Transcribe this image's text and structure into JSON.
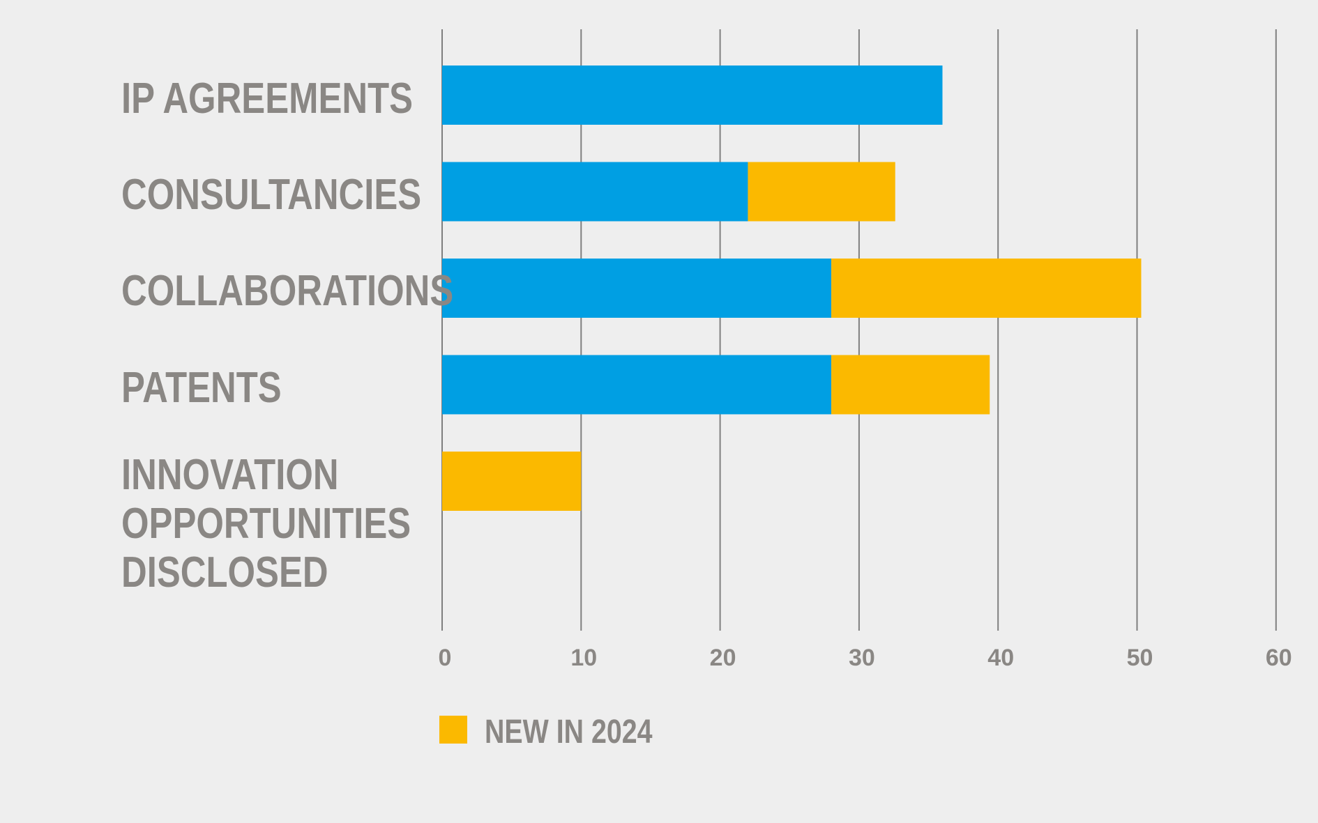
{
  "chart_data": {
    "type": "bar",
    "orientation": "horizontal",
    "stacked": true,
    "categories": [
      [
        "IP AGREEMENTS"
      ],
      [
        "CONSULTANCIES"
      ],
      [
        "COLLABORATIONS"
      ],
      [
        "PATENTS"
      ],
      [
        "INNOVATION",
        "OPPORTUNITIES",
        "DISCLOSED"
      ]
    ],
    "series": [
      {
        "values": [
          36,
          22,
          28,
          28,
          0
        ],
        "color": "#009fe3"
      },
      {
        "name": "NEW IN 2024",
        "values": [
          0,
          10.6,
          22.3,
          11.4,
          10
        ],
        "color": "#fbb900"
      }
    ],
    "x_ticks": [
      "0",
      "10",
      "20",
      "30",
      "40",
      "50",
      "60"
    ],
    "xlim": [
      0,
      60
    ],
    "grid": "vertical",
    "legend": {
      "position": "bottom-left",
      "entries": [
        {
          "label": "NEW IN 2024",
          "color": "#fbb900"
        }
      ]
    },
    "colors": {
      "background": "#eeeeee",
      "gridline": "#7f7f7f",
      "text": "#8a8784"
    }
  }
}
